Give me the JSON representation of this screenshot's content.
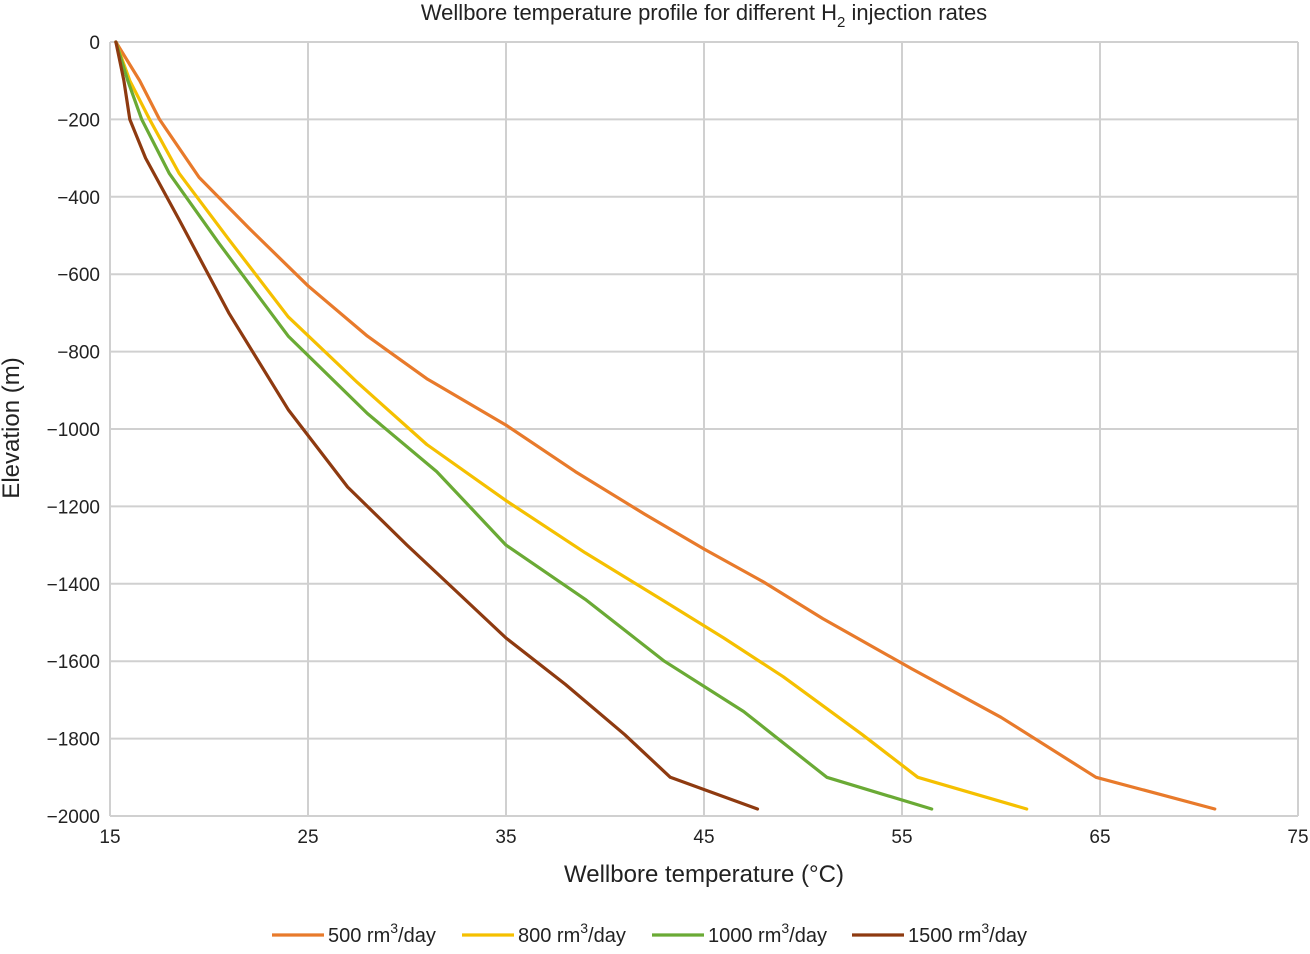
{
  "chart_data": {
    "type": "line",
    "title_main": "Wellbore temperature profile for different H",
    "title_sub": "2",
    "title_rest": " injection rates",
    "xlabel": "Wellbore temperature (°C)",
    "ylabel": "Elevation (m)",
    "xlim": [
      15,
      75
    ],
    "ylim": [
      -2000,
      0
    ],
    "xticks": [
      15,
      25,
      35,
      45,
      55,
      65,
      75
    ],
    "yticks": [
      0,
      -200,
      -400,
      -600,
      -800,
      -1000,
      -1200,
      -1400,
      -1600,
      -1800,
      -2000
    ],
    "ytick_labels": [
      "0",
      "−200",
      "−400",
      "−600",
      "−800",
      "−1000",
      "−1200",
      "−1400",
      "−1600",
      "−1800",
      "−2000"
    ],
    "grid": true,
    "legend_position": "bottom",
    "series": [
      {
        "name": "500 rm3/day",
        "legend_prefix": "500 rm",
        "legend_sup": "3",
        "legend_suffix": "/day",
        "color": "#E87A2B",
        "points": [
          [
            15.3,
            0
          ],
          [
            16.5,
            -100
          ],
          [
            17.5,
            -200
          ],
          [
            19.5,
            -350
          ],
          [
            22,
            -480
          ],
          [
            25,
            -630
          ],
          [
            28,
            -760
          ],
          [
            31,
            -870
          ],
          [
            35,
            -990
          ],
          [
            38.5,
            -1110
          ],
          [
            42,
            -1220
          ],
          [
            45,
            -1310
          ],
          [
            48,
            -1395
          ],
          [
            51,
            -1490
          ],
          [
            55.5,
            -1620
          ],
          [
            60,
            -1745
          ],
          [
            64.8,
            -1900
          ],
          [
            70.8,
            -1982
          ]
        ]
      },
      {
        "name": "800 rm3/day",
        "legend_prefix": "800 rm",
        "legend_sup": "3",
        "legend_suffix": "/day",
        "color": "#F5C000",
        "points": [
          [
            15.3,
            0
          ],
          [
            16,
            -100
          ],
          [
            17,
            -200
          ],
          [
            18.5,
            -340
          ],
          [
            21,
            -510
          ],
          [
            24,
            -710
          ],
          [
            27.5,
            -880
          ],
          [
            31,
            -1040
          ],
          [
            35,
            -1185
          ],
          [
            39,
            -1320
          ],
          [
            43,
            -1445
          ],
          [
            46,
            -1540
          ],
          [
            49,
            -1640
          ],
          [
            53,
            -1790
          ],
          [
            55.8,
            -1900
          ],
          [
            61.3,
            -1982
          ]
        ]
      },
      {
        "name": "1000 rm3/day",
        "legend_prefix": "1000 rm",
        "legend_sup": "3",
        "legend_suffix": "/day",
        "color": "#6AAA35",
        "points": [
          [
            15.3,
            0
          ],
          [
            15.9,
            -100
          ],
          [
            16.6,
            -200
          ],
          [
            18,
            -340
          ],
          [
            20.5,
            -520
          ],
          [
            24,
            -760
          ],
          [
            28,
            -960
          ],
          [
            31.5,
            -1110
          ],
          [
            35,
            -1300
          ],
          [
            39,
            -1440
          ],
          [
            43,
            -1600
          ],
          [
            47,
            -1730
          ],
          [
            51.2,
            -1900
          ],
          [
            56.5,
            -1982
          ]
        ]
      },
      {
        "name": "1500 rm3/day",
        "legend_prefix": "1500 rm",
        "legend_sup": "3",
        "legend_suffix": "/day",
        "color": "#8E3A10",
        "points": [
          [
            15.3,
            0
          ],
          [
            15.7,
            -100
          ],
          [
            16,
            -200
          ],
          [
            16.8,
            -300
          ],
          [
            18.5,
            -460
          ],
          [
            21,
            -700
          ],
          [
            24,
            -950
          ],
          [
            27,
            -1150
          ],
          [
            30,
            -1300
          ],
          [
            32.5,
            -1420
          ],
          [
            35,
            -1540
          ],
          [
            38,
            -1660
          ],
          [
            41,
            -1790
          ],
          [
            43.3,
            -1900
          ],
          [
            47.7,
            -1982
          ]
        ]
      }
    ]
  }
}
